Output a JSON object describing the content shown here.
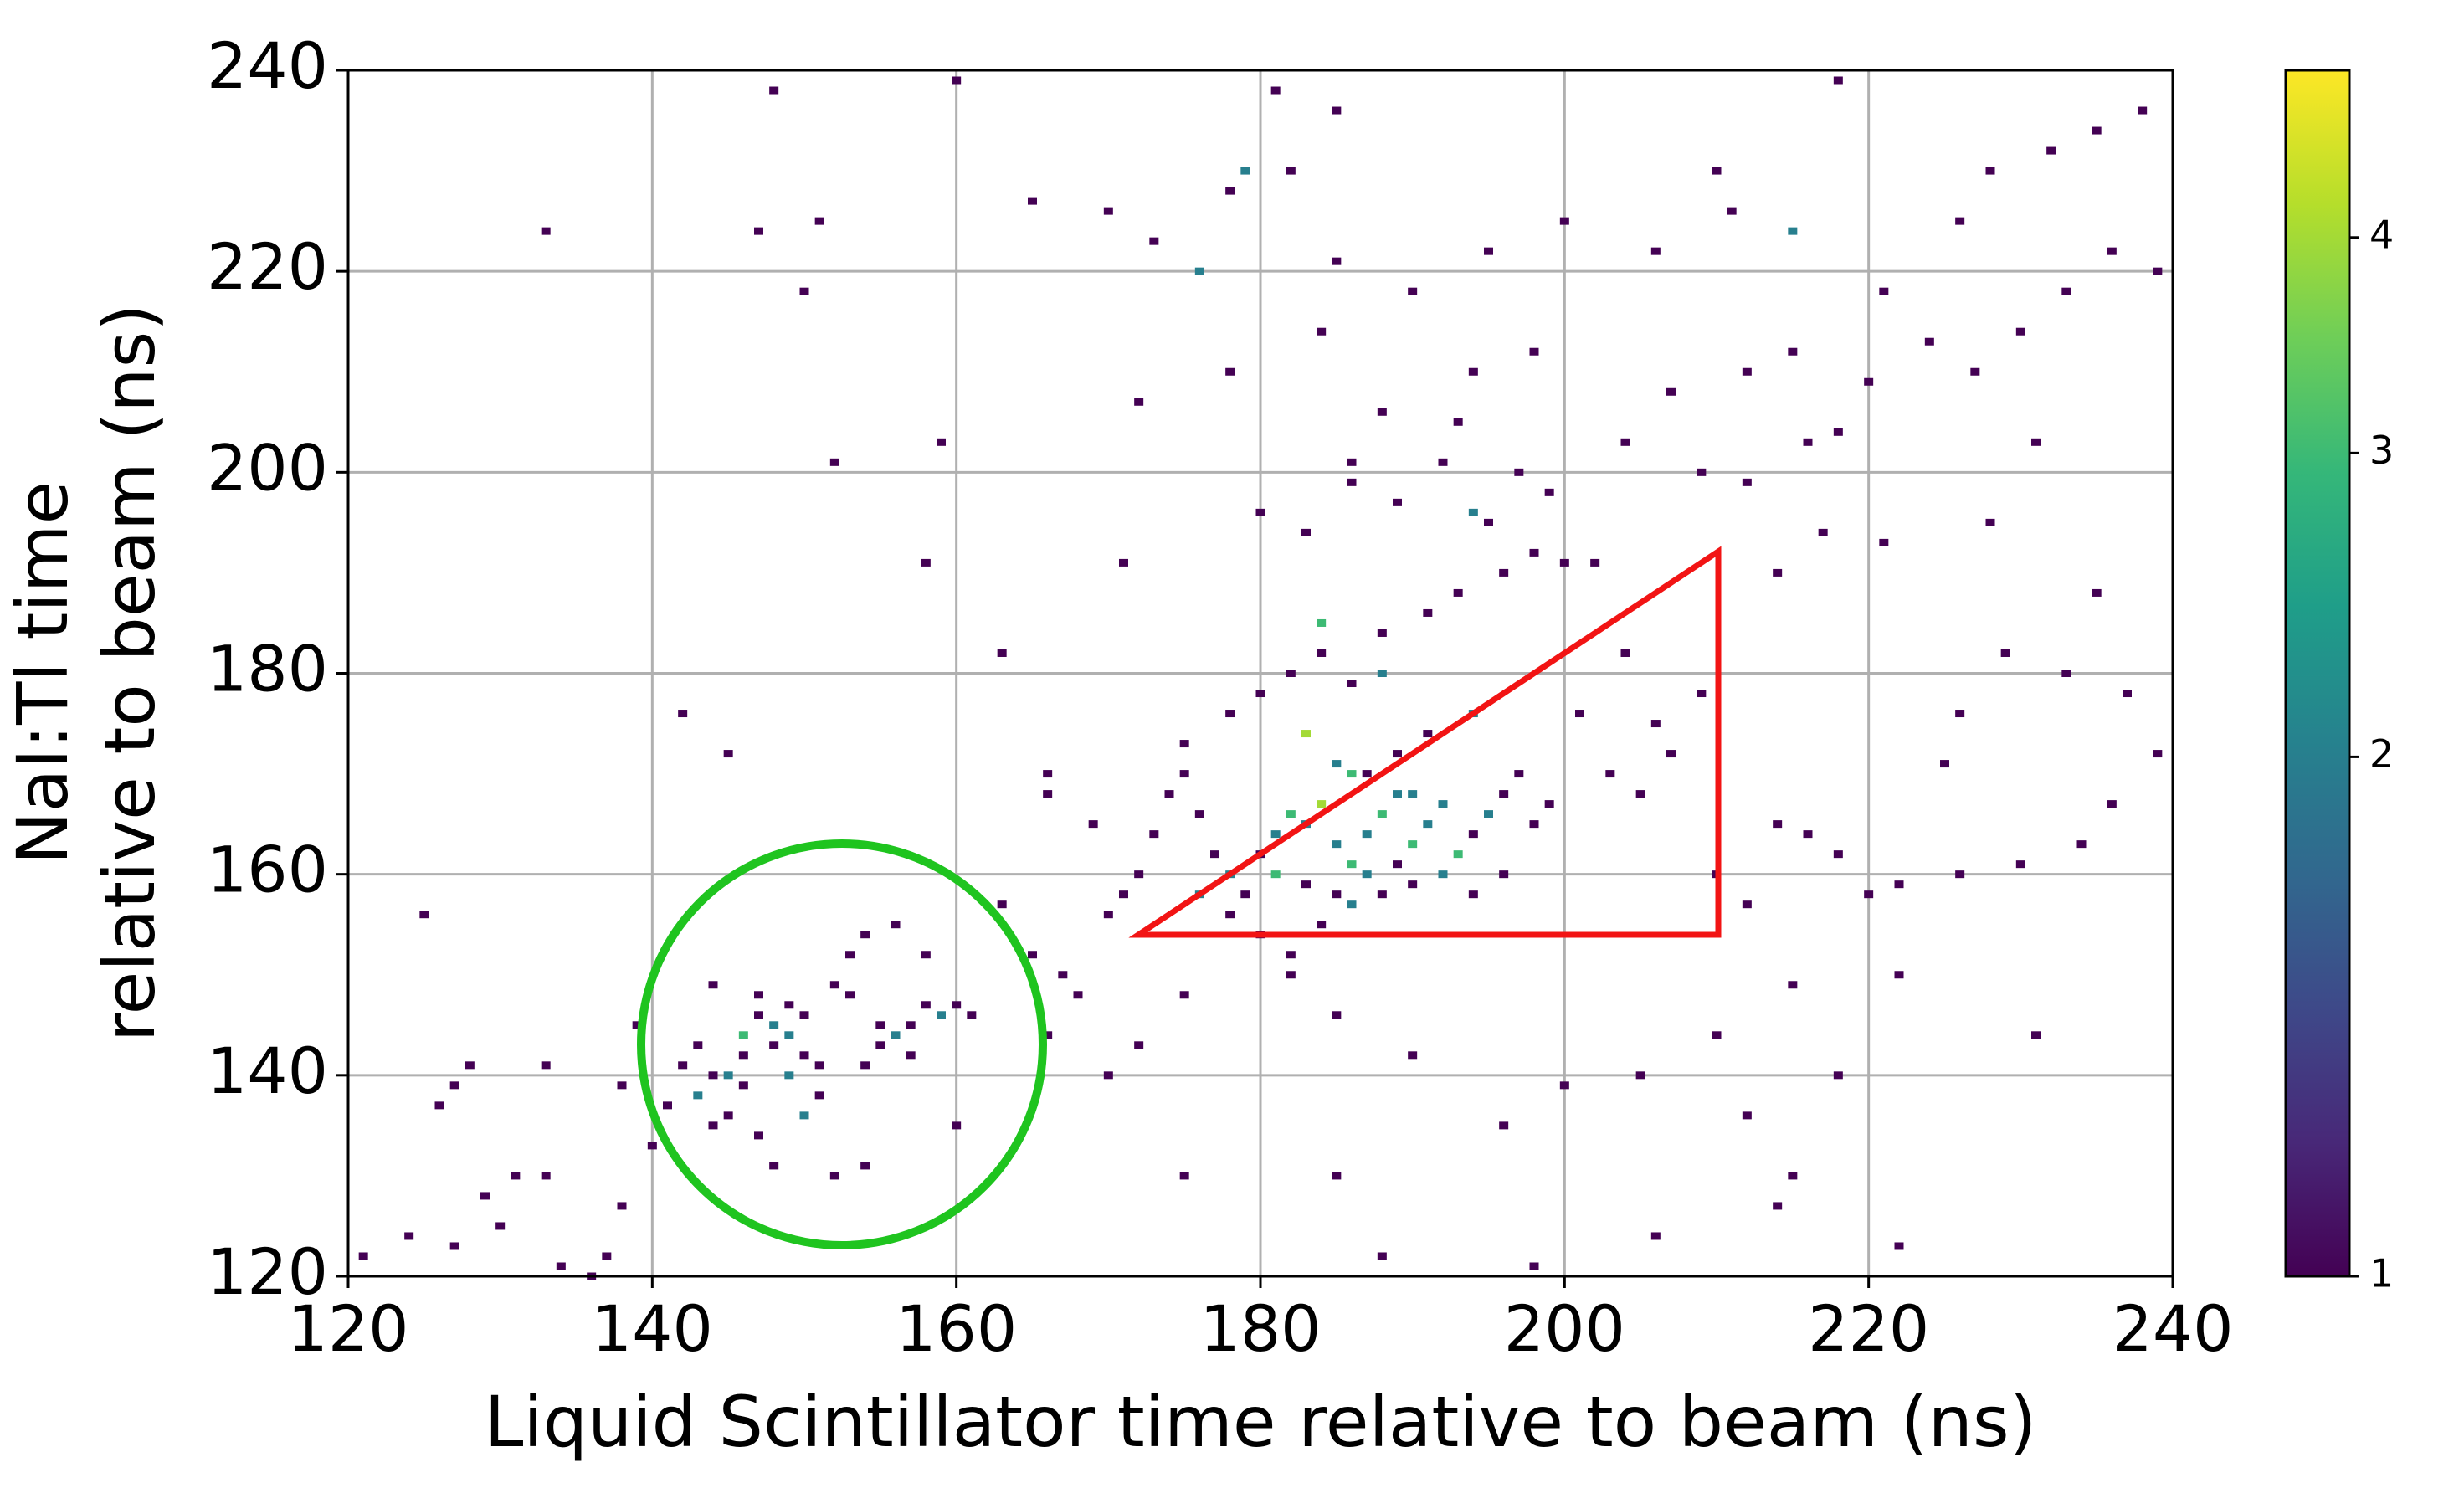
{
  "chart_data": {
    "type": "hist2d",
    "xlabel": "Liquid Scintillator time relative to beam (ns)",
    "ylabel": [
      "NaI:Tl time",
      "relative to beam (ns)"
    ],
    "xlim": [
      120,
      240
    ],
    "ylim": [
      120,
      240
    ],
    "xticks": [
      120,
      140,
      160,
      180,
      200,
      220,
      240
    ],
    "yticks": [
      120,
      140,
      160,
      180,
      200,
      220,
      240
    ],
    "grid": true,
    "colormap": "viridis",
    "color_scale": "log",
    "clim": [
      1,
      5
    ],
    "cticks": [
      1,
      2,
      3,
      4
    ],
    "x": [
      121,
      124,
      126,
      127,
      127,
      129,
      130,
      131,
      133,
      134,
      137,
      136,
      138,
      140,
      138,
      139,
      125,
      128,
      133,
      142,
      143,
      144,
      145,
      146,
      146,
      147,
      148,
      148,
      149,
      149,
      150,
      150,
      151,
      150,
      152,
      153,
      153,
      154,
      155,
      155,
      156,
      157,
      157,
      158,
      159,
      160,
      161,
      141,
      143,
      144,
      145,
      147,
      148,
      152,
      154,
      154,
      156,
      158,
      147,
      144,
      151,
      149,
      146,
      163,
      165,
      167,
      168,
      170,
      172,
      171,
      169,
      166,
      173,
      174,
      175,
      176,
      177,
      178,
      179,
      180,
      181,
      182,
      183,
      184,
      185,
      186,
      187,
      188,
      189,
      190,
      191,
      192,
      193,
      194,
      195,
      196,
      197,
      198,
      199,
      183,
      185,
      187,
      189,
      191,
      194,
      176,
      178,
      180,
      182,
      184,
      186,
      188,
      190,
      192,
      194,
      196,
      181,
      183,
      185,
      187,
      189,
      175,
      178,
      180,
      182,
      184,
      186,
      188,
      191,
      193,
      196,
      198,
      200,
      202,
      201,
      203,
      205,
      207,
      210,
      212,
      214,
      216,
      218,
      220,
      222,
      226,
      230,
      234,
      236,
      239,
      233,
      237,
      226,
      210,
      215,
      205,
      200,
      196,
      190,
      185,
      182,
      175,
      172,
      170,
      166,
      160,
      175,
      185,
      188,
      198,
      206,
      214,
      222,
      215,
      231,
      184,
      188,
      194,
      179,
      176,
      215,
      186,
      190,
      180,
      183,
      186,
      189,
      192,
      195,
      197,
      199,
      204,
      207,
      209,
      212,
      215,
      218,
      220,
      224,
      227,
      230,
      233,
      236,
      239,
      226,
      228,
      232,
      235,
      238,
      218,
      210,
      206,
      200,
      195,
      190,
      185,
      182,
      178,
      181,
      185,
      173,
      170,
      165,
      160,
      148,
      151,
      147,
      133,
      150,
      152,
      159,
      158,
      172,
      171,
      163,
      166,
      142,
      145,
      178,
      184,
      188,
      194,
      198,
      186,
      193,
      216,
      211,
      221,
      231,
      228,
      217,
      212,
      204,
      206,
      209,
      214,
      221,
      225,
      229,
      222,
      235,
      218,
      212
    ],
    "y": [
      122,
      124,
      137,
      139,
      123,
      128,
      125,
      130,
      130,
      121,
      122,
      120,
      127,
      133,
      139,
      145,
      156,
      141,
      141,
      141,
      143,
      140,
      140,
      142,
      144,
      146,
      145,
      143,
      144,
      147,
      146,
      142,
      138,
      136,
      149,
      152,
      148,
      141,
      145,
      143,
      144,
      145,
      142,
      147,
      146,
      147,
      146,
      137,
      138,
      135,
      136,
      134,
      131,
      130,
      131,
      154,
      155,
      152,
      148,
      149,
      141,
      140,
      139,
      157,
      152,
      150,
      148,
      156,
      160,
      158,
      165,
      168,
      164,
      168,
      170,
      166,
      162,
      160,
      158,
      162,
      164,
      166,
      165,
      167,
      163,
      161,
      164,
      166,
      168,
      163,
      165,
      167,
      162,
      164,
      166,
      168,
      170,
      165,
      167,
      174,
      171,
      170,
      172,
      174,
      176,
      158,
      156,
      154,
      152,
      155,
      157,
      158,
      159,
      160,
      158,
      160,
      160,
      159,
      158,
      160,
      161,
      173,
      176,
      178,
      180,
      182,
      179,
      184,
      186,
      188,
      190,
      192,
      191,
      191,
      176,
      170,
      168,
      172,
      160,
      157,
      165,
      164,
      162,
      158,
      159,
      160,
      161,
      163,
      167,
      172,
      180,
      178,
      176,
      144,
      149,
      140,
      139,
      135,
      142,
      146,
      150,
      148,
      143,
      140,
      144,
      135,
      130,
      130,
      122,
      121,
      124,
      127,
      123,
      130,
      144,
      185,
      180,
      196,
      230,
      220,
      224,
      170,
      168,
      196,
      194,
      199,
      197,
      201,
      195,
      200,
      198,
      203,
      208,
      200,
      210,
      212,
      204,
      209,
      213,
      210,
      214,
      218,
      222,
      220,
      225,
      230,
      232,
      234,
      236,
      239,
      230,
      222,
      225,
      222,
      218,
      221,
      230,
      228,
      238,
      236,
      223,
      226,
      227,
      239,
      238,
      225,
      224,
      224,
      218,
      201,
      203,
      191,
      207,
      191,
      182,
      170,
      176,
      172,
      210,
      214,
      206,
      210,
      212,
      201,
      205,
      203,
      226,
      218,
      203,
      195,
      194,
      199,
      182,
      175,
      178,
      190,
      193,
      171,
      182,
      150,
      188,
      140,
      136
    ],
    "values": [
      1,
      1,
      1,
      1,
      1,
      1,
      1,
      1,
      1,
      1,
      1,
      1,
      1,
      1,
      1,
      1,
      1,
      1,
      1,
      1,
      1,
      1,
      2,
      1,
      3,
      1,
      2,
      1,
      2,
      1,
      1,
      1,
      1,
      2,
      1,
      1,
      1,
      1,
      1,
      1,
      2,
      1,
      1,
      1,
      2,
      1,
      1,
      1,
      2,
      1,
      1,
      1,
      1,
      1,
      1,
      1,
      1,
      1,
      1,
      1,
      1,
      2,
      1,
      1,
      1,
      1,
      1,
      1,
      1,
      1,
      1,
      1,
      1,
      1,
      1,
      1,
      1,
      2,
      1,
      1,
      2,
      3,
      2,
      4,
      2,
      3,
      2,
      3,
      2,
      3,
      2,
      2,
      3,
      1,
      2,
      1,
      1,
      1,
      1,
      4,
      2,
      1,
      1,
      1,
      2,
      2,
      1,
      1,
      1,
      1,
      2,
      1,
      1,
      2,
      1,
      1,
      3,
      1,
      1,
      2,
      1,
      1,
      1,
      1,
      1,
      1,
      1,
      1,
      1,
      1,
      1,
      1,
      1,
      1,
      1,
      1,
      1,
      1,
      1,
      1,
      1,
      1,
      1,
      1,
      1,
      1,
      1,
      1,
      1,
      1,
      1,
      1,
      1,
      1,
      1,
      1,
      1,
      1,
      1,
      1,
      1,
      1,
      1,
      1,
      1,
      1,
      1,
      1,
      1,
      1,
      1,
      1,
      1,
      1,
      1,
      3,
      2,
      2,
      2,
      2,
      2,
      3,
      2,
      1,
      1,
      1,
      1,
      1,
      1,
      1,
      1,
      1,
      1,
      1,
      1,
      1,
      1,
      1,
      1,
      1,
      1,
      1,
      1,
      1,
      1,
      1,
      1,
      1,
      1,
      1,
      1,
      1,
      1,
      1,
      1,
      1,
      1,
      1,
      1,
      1,
      1,
      1,
      1,
      1,
      1,
      1,
      1,
      1,
      1,
      1,
      1,
      1,
      1,
      1,
      1,
      1,
      1,
      1,
      1,
      1,
      1,
      1,
      1,
      1,
      1,
      1,
      1,
      1,
      1,
      1,
      1,
      1,
      1,
      1,
      1,
      1,
      1,
      1,
      1,
      1,
      1,
      1,
      1
    ]
  }
}
